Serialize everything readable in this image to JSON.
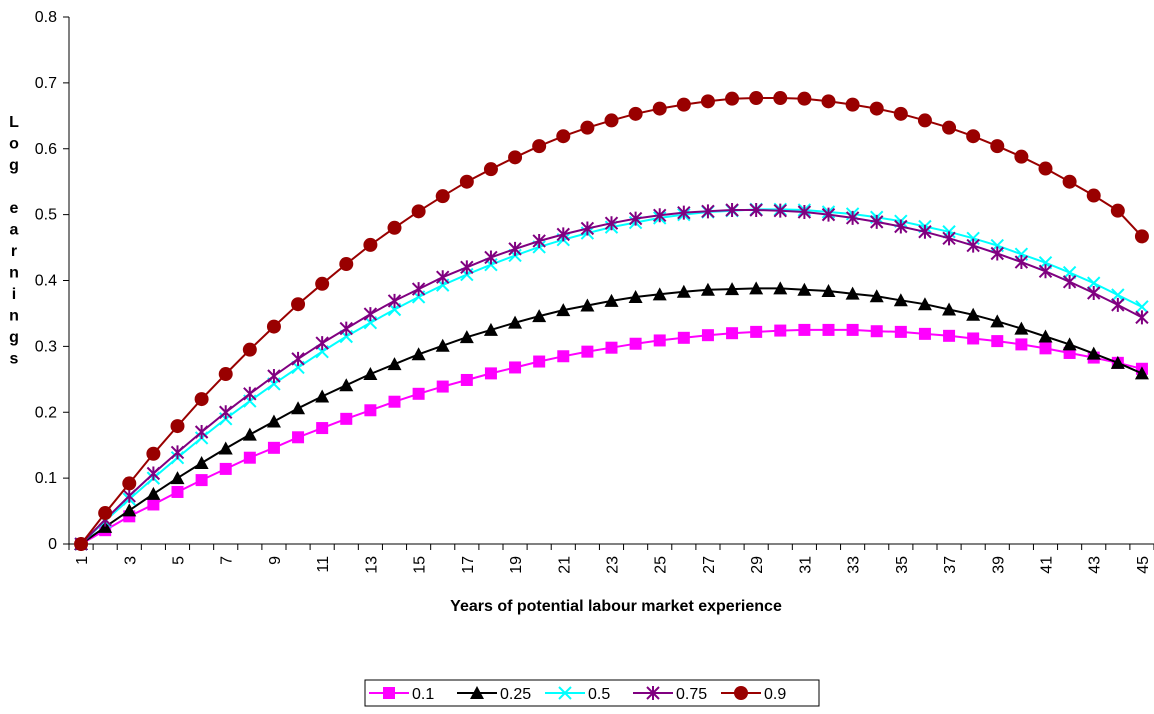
{
  "chart_data": {
    "type": "line",
    "title": "",
    "xlabel": "Years of potential labour market experience",
    "ylabel": "Log earnings",
    "ylim": [
      0,
      0.8
    ],
    "yticks": [
      "0",
      "0.1",
      "0.2",
      "0.3",
      "0.4",
      "0.5",
      "0.6",
      "0.7",
      "0.8"
    ],
    "xticks": [
      "1",
      "3",
      "5",
      "7",
      "9",
      "11",
      "13",
      "15",
      "17",
      "19",
      "21",
      "23",
      "25",
      "27",
      "29",
      "31",
      "33",
      "35",
      "37",
      "39",
      "41",
      "43",
      "45"
    ],
    "x": [
      1,
      2,
      3,
      4,
      5,
      6,
      7,
      8,
      9,
      10,
      11,
      12,
      13,
      14,
      15,
      16,
      17,
      18,
      19,
      20,
      21,
      22,
      23,
      24,
      25,
      26,
      27,
      28,
      29,
      30,
      31,
      32,
      33,
      34,
      35,
      36,
      37,
      38,
      39,
      40,
      41,
      42,
      43,
      44,
      45
    ],
    "grid": false,
    "legend_position": "bottom",
    "series": [
      {
        "name": "0.1",
        "color": "#FF00FF",
        "marker": "square",
        "values": [
          0.0,
          0.021,
          0.042,
          0.06,
          0.079,
          0.097,
          0.114,
          0.131,
          0.146,
          0.162,
          0.176,
          0.19,
          0.203,
          0.216,
          0.228,
          0.239,
          0.249,
          0.259,
          0.268,
          0.277,
          0.285,
          0.292,
          0.298,
          0.304,
          0.309,
          0.313,
          0.317,
          0.32,
          0.322,
          0.324,
          0.325,
          0.325,
          0.325,
          0.323,
          0.322,
          0.319,
          0.316,
          0.312,
          0.308,
          0.303,
          0.297,
          0.29,
          0.283,
          0.275,
          0.266
        ]
      },
      {
        "name": "0.25",
        "color": "#000000",
        "marker": "triangle",
        "values": [
          0.0,
          0.026,
          0.051,
          0.076,
          0.1,
          0.123,
          0.145,
          0.166,
          0.186,
          0.206,
          0.224,
          0.241,
          0.258,
          0.273,
          0.288,
          0.301,
          0.314,
          0.325,
          0.336,
          0.346,
          0.355,
          0.362,
          0.369,
          0.375,
          0.379,
          0.383,
          0.386,
          0.387,
          0.388,
          0.388,
          0.386,
          0.384,
          0.38,
          0.376,
          0.37,
          0.364,
          0.356,
          0.348,
          0.338,
          0.327,
          0.315,
          0.303,
          0.289,
          0.275,
          0.259
        ]
      },
      {
        "name": "0.5",
        "color": "#00FFFF",
        "marker": "x",
        "values": [
          0.0,
          0.035,
          0.068,
          0.1,
          0.131,
          0.161,
          0.19,
          0.217,
          0.243,
          0.268,
          0.292,
          0.315,
          0.336,
          0.356,
          0.375,
          0.393,
          0.409,
          0.424,
          0.438,
          0.451,
          0.462,
          0.472,
          0.481,
          0.488,
          0.495,
          0.5,
          0.504,
          0.506,
          0.508,
          0.508,
          0.507,
          0.504,
          0.501,
          0.496,
          0.49,
          0.482,
          0.474,
          0.464,
          0.453,
          0.44,
          0.427,
          0.412,
          0.396,
          0.378,
          0.36
        ]
      },
      {
        "name": "0.75",
        "color": "#800080",
        "marker": "star",
        "values": [
          0.0,
          0.037,
          0.073,
          0.107,
          0.139,
          0.17,
          0.2,
          0.228,
          0.255,
          0.281,
          0.305,
          0.327,
          0.349,
          0.369,
          0.387,
          0.405,
          0.42,
          0.435,
          0.448,
          0.46,
          0.47,
          0.479,
          0.487,
          0.494,
          0.499,
          0.503,
          0.505,
          0.507,
          0.507,
          0.506,
          0.504,
          0.5,
          0.495,
          0.489,
          0.482,
          0.474,
          0.464,
          0.453,
          0.441,
          0.428,
          0.414,
          0.398,
          0.381,
          0.363,
          0.344
        ]
      },
      {
        "name": "0.9",
        "color": "#990000",
        "marker": "circle",
        "values": [
          0.0,
          0.047,
          0.092,
          0.137,
          0.179,
          0.22,
          0.258,
          0.295,
          0.33,
          0.364,
          0.395,
          0.425,
          0.454,
          0.48,
          0.505,
          0.528,
          0.55,
          0.569,
          0.587,
          0.604,
          0.619,
          0.632,
          0.643,
          0.653,
          0.661,
          0.667,
          0.672,
          0.676,
          0.677,
          0.677,
          0.676,
          0.672,
          0.667,
          0.661,
          0.653,
          0.643,
          0.632,
          0.619,
          0.604,
          0.588,
          0.57,
          0.55,
          0.529,
          0.506,
          0.467
        ]
      }
    ]
  }
}
